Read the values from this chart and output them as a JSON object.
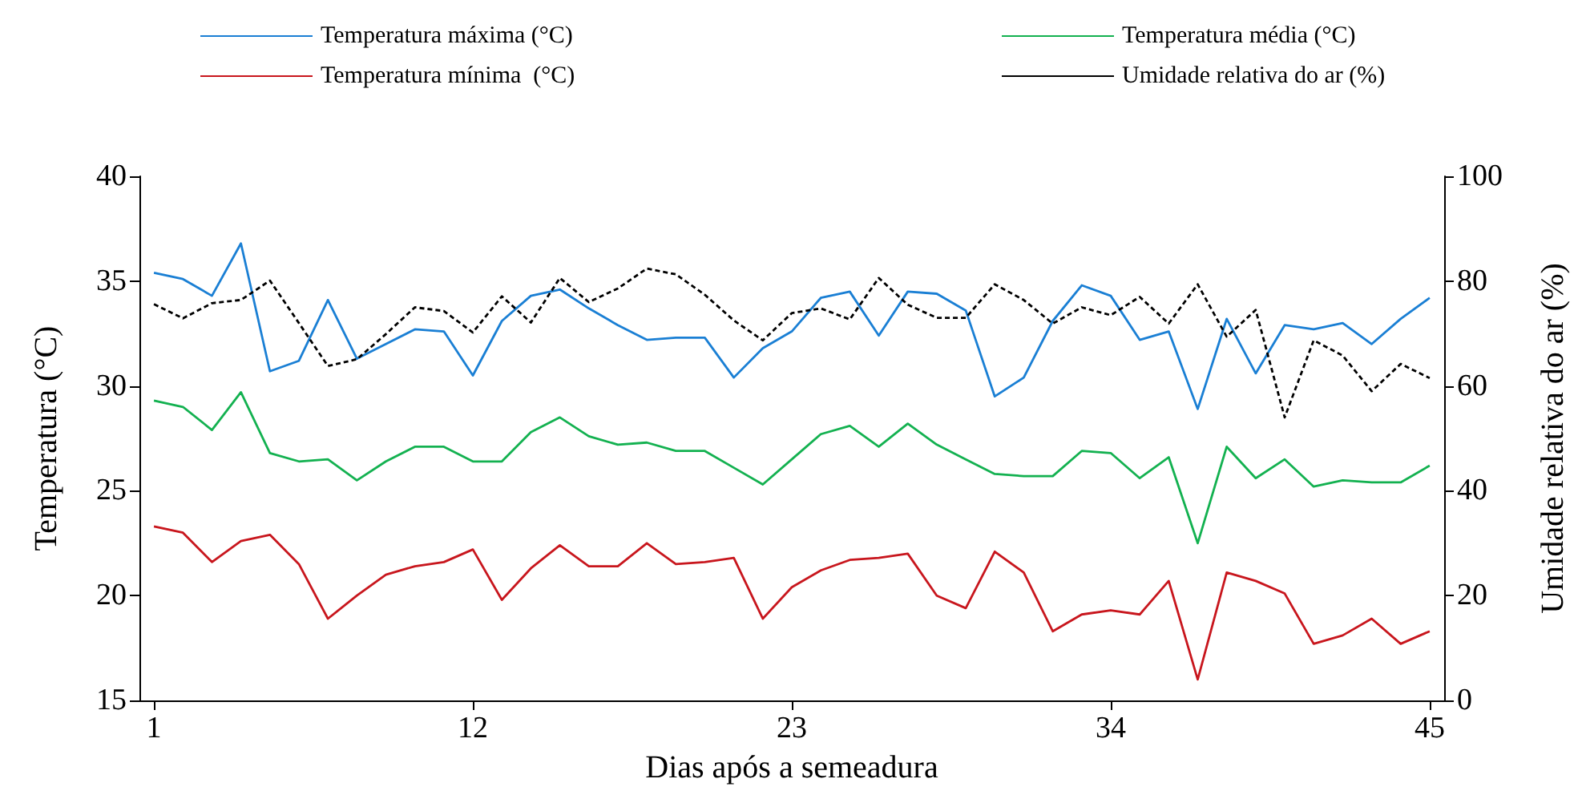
{
  "chart_data": {
    "type": "line",
    "xlabel": "Dias após a semeadura",
    "ylabel": "Temperatura (°C)",
    "y2label": "Umidade relativa do ar (%)",
    "x": [
      1,
      2,
      3,
      4,
      5,
      6,
      7,
      8,
      9,
      10,
      11,
      12,
      13,
      14,
      15,
      16,
      17,
      18,
      19,
      20,
      21,
      22,
      23,
      24,
      25,
      26,
      27,
      28,
      29,
      30,
      31,
      32,
      33,
      34,
      35,
      36,
      37,
      38,
      39,
      40,
      41,
      42,
      43,
      44,
      45
    ],
    "xlim": [
      0.5,
      45.5
    ],
    "xticks": [
      1,
      12,
      23,
      34,
      45
    ],
    "ylim": [
      15,
      40
    ],
    "yticks": [
      15,
      20,
      25,
      30,
      35,
      40
    ],
    "y2lim": [
      0,
      100
    ],
    "y2ticks": [
      0,
      20,
      40,
      60,
      80,
      100
    ],
    "grid": false,
    "legend": "top",
    "marker": "none",
    "series": [
      {
        "name": "Temperatura máxima (°C)",
        "color": "#1a7fd4",
        "line_style": "solid",
        "values": [
          35.4,
          35.1,
          34.3,
          36.8,
          30.7,
          31.2,
          34.1,
          31.3,
          32.0,
          32.7,
          32.6,
          30.5,
          33.1,
          34.3,
          34.6,
          33.7,
          32.9,
          32.2,
          32.3,
          32.3,
          30.4,
          31.8,
          32.6,
          34.2,
          34.5,
          32.4,
          34.5,
          34.4,
          33.6,
          29.5,
          30.4,
          33.1,
          34.8,
          34.3,
          32.2,
          32.6,
          28.9,
          33.2,
          30.6,
          32.9,
          32.7,
          33.0,
          32.0,
          33.2,
          34.2
        ]
      },
      {
        "name": "Temperatura média (°C)",
        "color": "#13b150",
        "line_style": "solid",
        "values": [
          29.3,
          29.0,
          27.9,
          29.7,
          26.8,
          26.4,
          26.5,
          25.5,
          26.4,
          27.1,
          27.1,
          26.4,
          26.4,
          27.8,
          28.5,
          27.6,
          27.2,
          27.3,
          26.9,
          26.9,
          26.1,
          25.3,
          26.5,
          27.7,
          28.1,
          27.1,
          28.2,
          27.2,
          26.5,
          25.8,
          25.7,
          25.7,
          26.9,
          26.8,
          25.6,
          26.6,
          22.5,
          27.1,
          25.6,
          26.5,
          25.2,
          25.5,
          25.4,
          25.4,
          26.2
        ]
      },
      {
        "name": "Temperatura mínima  (°C)",
        "color": "#c8161d",
        "line_style": "solid",
        "values": [
          23.3,
          23.0,
          21.6,
          22.6,
          22.9,
          21.5,
          18.9,
          20.0,
          21.0,
          21.4,
          21.6,
          22.2,
          19.8,
          21.3,
          22.4,
          21.4,
          21.4,
          22.5,
          21.5,
          21.6,
          21.8,
          18.9,
          20.4,
          21.2,
          21.7,
          21.8,
          22.0,
          20.0,
          19.4,
          22.1,
          21.1,
          18.3,
          19.1,
          19.3,
          19.1,
          20.7,
          16.0,
          21.1,
          20.7,
          20.1,
          17.7,
          18.1,
          18.9,
          17.7,
          18.3
        ]
      },
      {
        "name": "Umidade relativa do ar (%)",
        "color": "#000000",
        "line_style": "dashed",
        "axis": "y2",
        "values": [
          75.6,
          72.9,
          75.8,
          76.4,
          80.1,
          72.0,
          63.8,
          65.1,
          69.9,
          75.0,
          74.3,
          70.2,
          77.1,
          72.1,
          80.6,
          76.0,
          78.6,
          82.4,
          81.3,
          77.4,
          72.5,
          68.7,
          73.9,
          74.8,
          72.7,
          80.6,
          75.5,
          73.0,
          73.0,
          79.4,
          76.4,
          71.9,
          75.0,
          73.5,
          77.0,
          71.9,
          79.4,
          69.4,
          74.5,
          54.0,
          68.7,
          65.8,
          59.0,
          64.2,
          61.5
        ]
      }
    ]
  }
}
